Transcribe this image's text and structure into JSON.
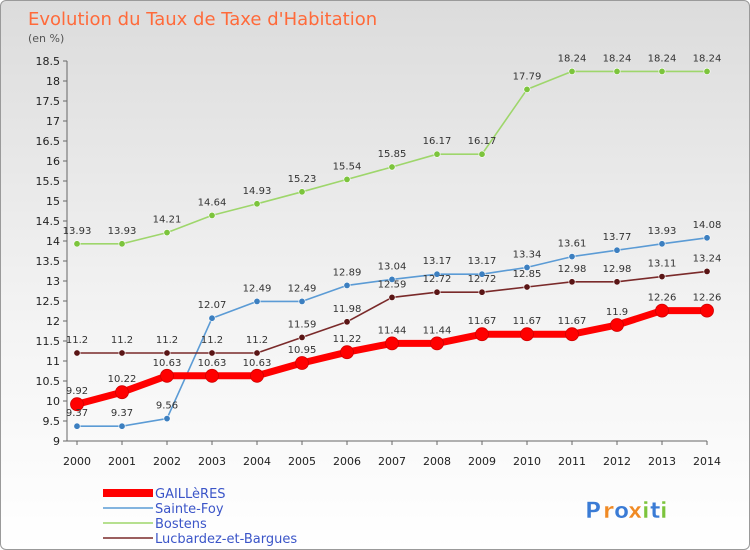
{
  "chart_data": {
    "type": "line",
    "title": "Evolution du Taux de Taxe d'Habitation",
    "subtitle": "(en %)",
    "x": [
      "2000",
      "2001",
      "2002",
      "2003",
      "2004",
      "2005",
      "2006",
      "2007",
      "2008",
      "2009",
      "2010",
      "2011",
      "2012",
      "2013",
      "2014"
    ],
    "yticks": [
      "9",
      "9.5",
      "10",
      "10.5",
      "11",
      "11.5",
      "12",
      "12.5",
      "13",
      "13.5",
      "14",
      "14.5",
      "15",
      "15.5",
      "16",
      "16.5",
      "17",
      "17.5",
      "18",
      "18.5"
    ],
    "ylim": [
      9,
      18.5
    ],
    "grid": false,
    "legend_position": "bottom-left",
    "series": [
      {
        "name": "GAILLèRES",
        "color": "#ff0000",
        "marker": "#ff0000",
        "values": [
          9.92,
          10.22,
          10.63,
          10.63,
          10.63,
          10.95,
          11.22,
          11.44,
          11.44,
          11.67,
          11.67,
          11.67,
          11.9,
          12.26,
          12.26
        ]
      },
      {
        "name": "Sainte-Foy",
        "color": "#5b9bd5",
        "marker": "#3c7fc0",
        "values": [
          9.37,
          9.37,
          9.56,
          12.07,
          12.49,
          12.49,
          12.89,
          13.04,
          13.17,
          13.17,
          13.34,
          13.61,
          13.77,
          13.93,
          14.08
        ]
      },
      {
        "name": "Bostens",
        "color": "#9ed66b",
        "marker": "#7cc43c",
        "values": [
          13.93,
          13.93,
          14.21,
          14.64,
          14.93,
          15.23,
          15.54,
          15.85,
          16.17,
          16.17,
          17.79,
          18.24,
          18.24,
          18.24,
          18.24
        ]
      },
      {
        "name": "Lucbardez-et-Bargues",
        "color": "#7a2a2a",
        "marker": "#5a1515",
        "values": [
          11.2,
          11.2,
          11.2,
          11.2,
          11.2,
          11.59,
          11.98,
          12.59,
          12.72,
          12.72,
          12.85,
          12.98,
          12.98,
          13.11,
          13.24
        ]
      }
    ]
  },
  "logo": {
    "text": "Proxiti",
    "letters": [
      "P",
      "r",
      "o",
      "x",
      "i",
      "t",
      "i"
    ],
    "colors": [
      "#3a7bd5",
      "#f08a24",
      "#3a7bd5",
      "#f08a24",
      "#7cc43c",
      "#3a7bd5",
      "#7cc43c"
    ]
  }
}
